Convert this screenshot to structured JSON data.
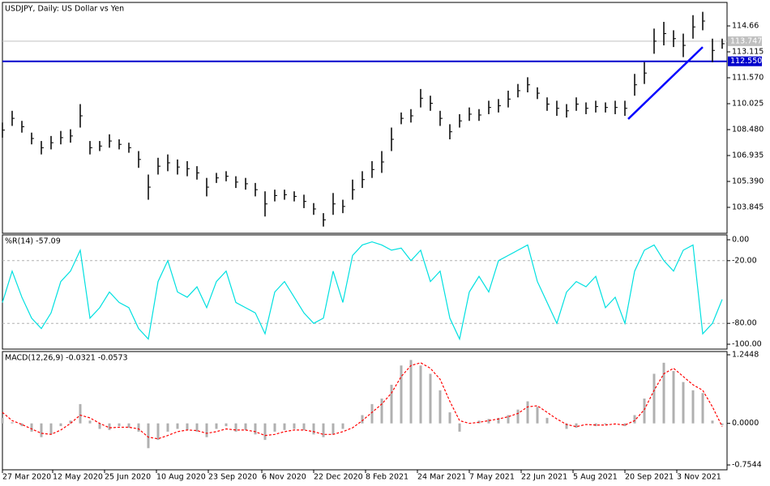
{
  "chart_data": [
    {
      "type": "range",
      "title": "USDJPY, Daily:  US Dollar vs Yen",
      "color": "#000000",
      "x": [
        0,
        6,
        12,
        18,
        24,
        30,
        36,
        42,
        48,
        54,
        60,
        66,
        72,
        78,
        84,
        90,
        96,
        102,
        108,
        114,
        120,
        126,
        132,
        138,
        144,
        150,
        156,
        162,
        168,
        174,
        180,
        186,
        192,
        198,
        204,
        210,
        216,
        222,
        228,
        234,
        240,
        246,
        252,
        258,
        264,
        270,
        276,
        282,
        288,
        294,
        300,
        306,
        312,
        318,
        324,
        330,
        336,
        342,
        348,
        354,
        360,
        366,
        372,
        378,
        384,
        390,
        396,
        402,
        408,
        414,
        420,
        426,
        432,
        438,
        444
      ],
      "high": [
        108.9,
        109.6,
        109.0,
        108.3,
        107.8,
        108.1,
        108.4,
        108.5,
        110.0,
        107.8,
        107.8,
        108.2,
        107.9,
        107.7,
        107.2,
        105.8,
        106.8,
        107.0,
        106.7,
        106.6,
        106.3,
        105.6,
        105.9,
        106.0,
        105.7,
        105.6,
        105.3,
        104.8,
        104.9,
        104.9,
        104.8,
        104.6,
        104.1,
        103.5,
        104.7,
        104.3,
        105.5,
        106.0,
        106.6,
        107.2,
        108.6,
        109.5,
        109.7,
        110.9,
        110.5,
        109.6,
        108.8,
        109.4,
        109.8,
        109.7,
        110.2,
        110.3,
        110.8,
        111.2,
        111.6,
        111.0,
        110.4,
        110.2,
        110.0,
        110.4,
        110.1,
        110.2,
        110.1,
        110.2,
        110.2,
        111.8,
        112.5,
        114.5,
        114.9,
        114.4,
        114.2,
        115.3,
        115.5,
        113.9,
        113.9
      ],
      "low": [
        108.0,
        108.7,
        108.3,
        107.6,
        107.0,
        107.3,
        107.6,
        107.7,
        108.6,
        107.0,
        107.2,
        107.4,
        107.3,
        107.1,
        106.2,
        104.3,
        105.8,
        106.0,
        105.8,
        105.7,
        105.5,
        104.5,
        105.3,
        105.4,
        105.0,
        104.9,
        104.5,
        103.3,
        104.2,
        104.3,
        104.2,
        103.8,
        103.4,
        102.7,
        103.4,
        103.5,
        104.3,
        105.0,
        105.6,
        105.9,
        107.2,
        108.8,
        108.9,
        109.8,
        109.6,
        108.7,
        107.9,
        108.6,
        109.0,
        109.0,
        109.4,
        109.5,
        109.8,
        110.4,
        110.7,
        110.3,
        109.6,
        109.3,
        109.2,
        109.6,
        109.4,
        109.5,
        109.5,
        109.4,
        109.3,
        110.5,
        111.2,
        113.0,
        113.5,
        113.4,
        112.8,
        113.9,
        114.4,
        112.5,
        113.3
      ],
      "xlim": [
        0,
        447
      ],
      "ylim": [
        102.3,
        116.06
      ],
      "yticks": [
        103.845,
        {
          "value": 105.39,
          "label": "105.390"
        },
        106.935,
        {
          "value": 108.48,
          "label": "108.480"
        },
        110.025,
        {
          "value": 111.57,
          "label": "111.570"
        },
        113.115,
        114.66
      ],
      "hlines": [
        {
          "value": 113.747,
          "color": "#c0c0c0"
        },
        {
          "value": 112.55,
          "label": "112.550",
          "color": "#0000cc"
        }
      ],
      "trendline": {
        "x": [
          386,
          432
        ],
        "y": [
          109.11,
          113.4
        ],
        "color": "#0000ff"
      }
    },
    {
      "type": "line",
      "title": "%R(14) -57.09",
      "color": "#00e0e0",
      "x": [
        0,
        6,
        12,
        18,
        24,
        30,
        36,
        42,
        48,
        54,
        60,
        66,
        72,
        78,
        84,
        90,
        96,
        102,
        108,
        114,
        120,
        126,
        132,
        138,
        144,
        150,
        156,
        162,
        168,
        174,
        180,
        186,
        192,
        198,
        204,
        210,
        216,
        222,
        228,
        234,
        240,
        246,
        252,
        258,
        264,
        270,
        276,
        282,
        288,
        294,
        300,
        306,
        312,
        318,
        324,
        330,
        336,
        342,
        348,
        354,
        360,
        366,
        372,
        378,
        384,
        390,
        396,
        402,
        408,
        414,
        420,
        426,
        432,
        438,
        444
      ],
      "values": [
        -60,
        -30,
        -55,
        -75,
        -85,
        -70,
        -40,
        -30,
        -10,
        -75,
        -65,
        -50,
        -60,
        -65,
        -85,
        -95,
        -40,
        -20,
        -50,
        -55,
        -45,
        -65,
        -40,
        -30,
        -60,
        -65,
        -70,
        -90,
        -50,
        -40,
        -55,
        -70,
        -80,
        -75,
        -30,
        -60,
        -15,
        -5,
        -2,
        -5,
        -10,
        -8,
        -20,
        -10,
        -40,
        -30,
        -75,
        -95,
        -50,
        -35,
        -50,
        -20,
        -15,
        -10,
        -5,
        -40,
        -60,
        -80,
        -50,
        -40,
        -45,
        -35,
        -65,
        -55,
        -80,
        -30,
        -10,
        -5,
        -20,
        -30,
        -10,
        -5,
        -90,
        -80,
        -57.09
      ],
      "xlim": [
        0,
        447
      ],
      "ylim": [
        -104.65,
        4.65
      ],
      "yticks": [
        {
          "value": 0,
          "label": "0.00"
        },
        {
          "value": -20,
          "label": "-20.00"
        },
        {
          "value": -80,
          "label": "-80.00"
        },
        {
          "value": -100,
          "label": "-100.00"
        }
      ],
      "levels": [
        -20,
        -80
      ]
    },
    {
      "type": "macd",
      "title": "MACD(12,26,9) -0.0321 -0.0573",
      "x": [
        0,
        6,
        12,
        18,
        24,
        30,
        36,
        42,
        48,
        54,
        60,
        66,
        72,
        78,
        84,
        90,
        96,
        102,
        108,
        114,
        120,
        126,
        132,
        138,
        144,
        150,
        156,
        162,
        168,
        174,
        180,
        186,
        192,
        198,
        204,
        210,
        216,
        222,
        228,
        234,
        240,
        246,
        252,
        258,
        264,
        270,
        276,
        282,
        288,
        294,
        300,
        306,
        312,
        318,
        324,
        330,
        336,
        342,
        348,
        354,
        360,
        366,
        372,
        378,
        384,
        390,
        396,
        402,
        408,
        414,
        420,
        426,
        432,
        438,
        444
      ],
      "series": [
        {
          "style": "histogram",
          "color": "#b0b0b0",
          "values": [
            0.1,
            0.02,
            -0.05,
            -0.15,
            -0.25,
            -0.2,
            -0.05,
            0.05,
            0.35,
            0.05,
            -0.1,
            -0.12,
            -0.05,
            -0.08,
            -0.15,
            -0.45,
            -0.3,
            -0.15,
            -0.1,
            -0.12,
            -0.15,
            -0.25,
            -0.1,
            -0.05,
            -0.15,
            -0.12,
            -0.2,
            -0.3,
            -0.15,
            -0.12,
            -0.1,
            -0.12,
            -0.2,
            -0.25,
            -0.2,
            -0.1,
            0.0,
            0.15,
            0.35,
            0.45,
            0.7,
            1.05,
            1.15,
            1.05,
            0.9,
            0.6,
            0.2,
            -0.15,
            0.0,
            0.05,
            0.08,
            0.1,
            0.15,
            0.25,
            0.4,
            0.3,
            0.1,
            0.0,
            -0.1,
            -0.08,
            0.0,
            -0.05,
            -0.02,
            0.0,
            -0.05,
            0.15,
            0.45,
            0.9,
            1.1,
            0.95,
            0.75,
            0.6,
            0.55,
            0.05,
            -0.0321
          ]
        },
        {
          "style": "dashed",
          "color": "#ff0000",
          "values": [
            0.2,
            0.05,
            -0.02,
            -0.1,
            -0.18,
            -0.2,
            -0.12,
            0.0,
            0.15,
            0.1,
            0.0,
            -0.08,
            -0.07,
            -0.07,
            -0.1,
            -0.25,
            -0.28,
            -0.22,
            -0.15,
            -0.12,
            -0.13,
            -0.18,
            -0.15,
            -0.1,
            -0.12,
            -0.12,
            -0.15,
            -0.22,
            -0.2,
            -0.15,
            -0.12,
            -0.12,
            -0.15,
            -0.2,
            -0.2,
            -0.15,
            -0.08,
            0.05,
            0.2,
            0.35,
            0.55,
            0.85,
            1.05,
            1.1,
            1.0,
            0.8,
            0.4,
            0.05,
            0.0,
            0.02,
            0.05,
            0.08,
            0.12,
            0.18,
            0.3,
            0.32,
            0.2,
            0.08,
            -0.02,
            -0.06,
            -0.02,
            -0.03,
            -0.03,
            -0.01,
            -0.03,
            0.05,
            0.25,
            0.6,
            0.9,
            1.0,
            0.85,
            0.7,
            0.6,
            0.3,
            -0.0573
          ]
        }
      ],
      "xlim": [
        0,
        447
      ],
      "ylim": [
        -0.8422,
        1.3034
      ],
      "yticks": [
        1.2448,
        {
          "value": 0,
          "label": "0.0000"
        },
        -0.7544
      ],
      "xticks": [
        {
          "value": 0,
          "label": "27 Mar 2020"
        },
        {
          "value": 31,
          "label": "12 May 2020"
        },
        {
          "value": 63,
          "label": "25 Jun 2020"
        },
        {
          "value": 95,
          "label": "10 Aug 2020"
        },
        {
          "value": 127,
          "label": "23 Sep 2020"
        },
        {
          "value": 160,
          "label": "6 Nov 2020"
        },
        {
          "value": 192,
          "label": "22 Dec 2020"
        },
        {
          "value": 224,
          "label": "8 Feb 2021"
        },
        {
          "value": 256,
          "label": "24 Mar 2021"
        },
        {
          "value": 288,
          "label": "7 May 2021"
        },
        {
          "value": 320,
          "label": "22 Jun 2021"
        },
        {
          "value": 352,
          "label": "5 Aug 2021"
        },
        {
          "value": 384,
          "label": "20 Sep 2021"
        },
        {
          "value": 416,
          "label": "3 Nov 2021"
        }
      ]
    }
  ]
}
